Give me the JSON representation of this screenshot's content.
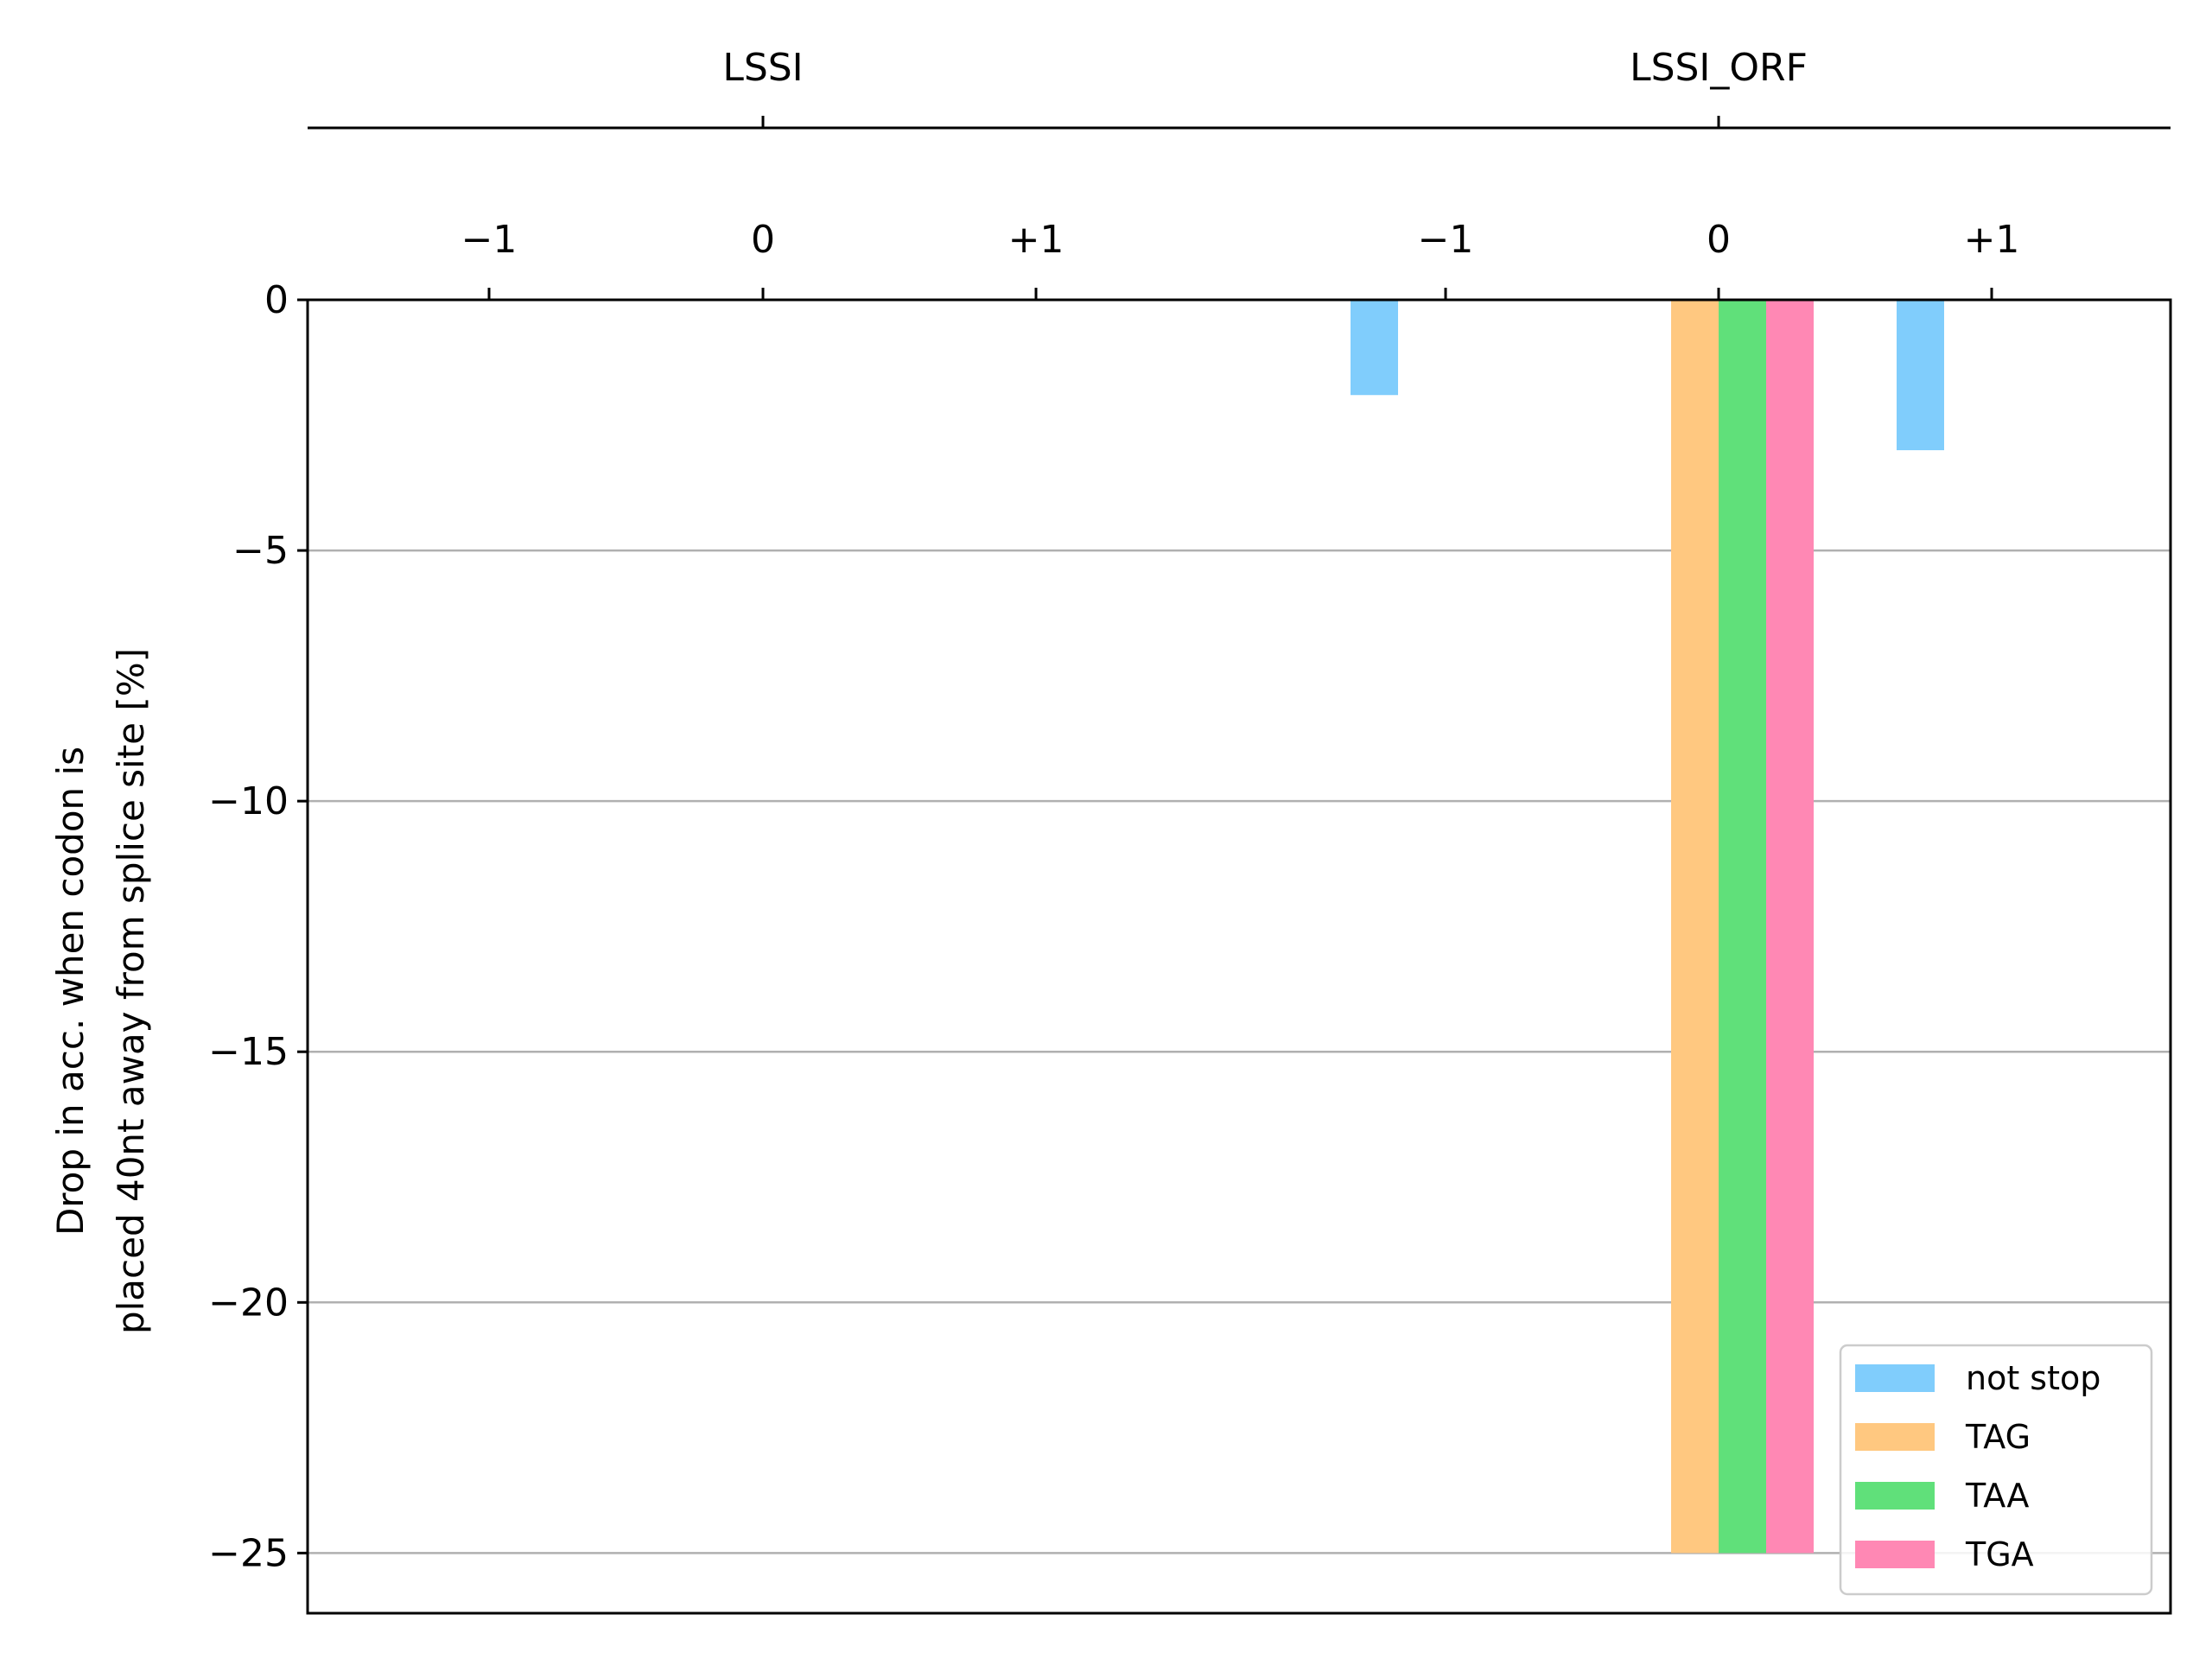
{
  "chart_data": {
    "type": "bar",
    "groups": [
      {
        "name": "LSSI",
        "frames": [
          "−1",
          "0",
          "+1"
        ]
      },
      {
        "name": "LSSI_ORF",
        "frames": [
          "−1",
          "0",
          "+1"
        ]
      }
    ],
    "ylabel_lines": [
      "Drop in acc. when codon is",
      "placed 40nt away from splice site [%]"
    ],
    "ylim": [
      -26.2,
      0
    ],
    "yticks": [
      0,
      -5,
      -10,
      -15,
      -20,
      -25
    ],
    "ytick_labels": [
      "0",
      "−5",
      "−10",
      "−15",
      "−20",
      "−25"
    ],
    "grid": "horizontal",
    "legend_position": "lower-right",
    "series": [
      {
        "name": "not stop",
        "color": "#80cdfc",
        "values": [
          0,
          0,
          0,
          -1.9,
          0,
          -3.0
        ]
      },
      {
        "name": "TAG",
        "color": "#ffc880",
        "values": [
          0,
          0,
          0,
          0,
          -25,
          0
        ]
      },
      {
        "name": "TAA",
        "color": "#60e07a",
        "values": [
          0,
          0,
          0,
          0,
          -25,
          0
        ]
      },
      {
        "name": "TGA",
        "color": "#ff88b4",
        "values": [
          0,
          0,
          0,
          0,
          -25,
          0
        ]
      }
    ]
  }
}
